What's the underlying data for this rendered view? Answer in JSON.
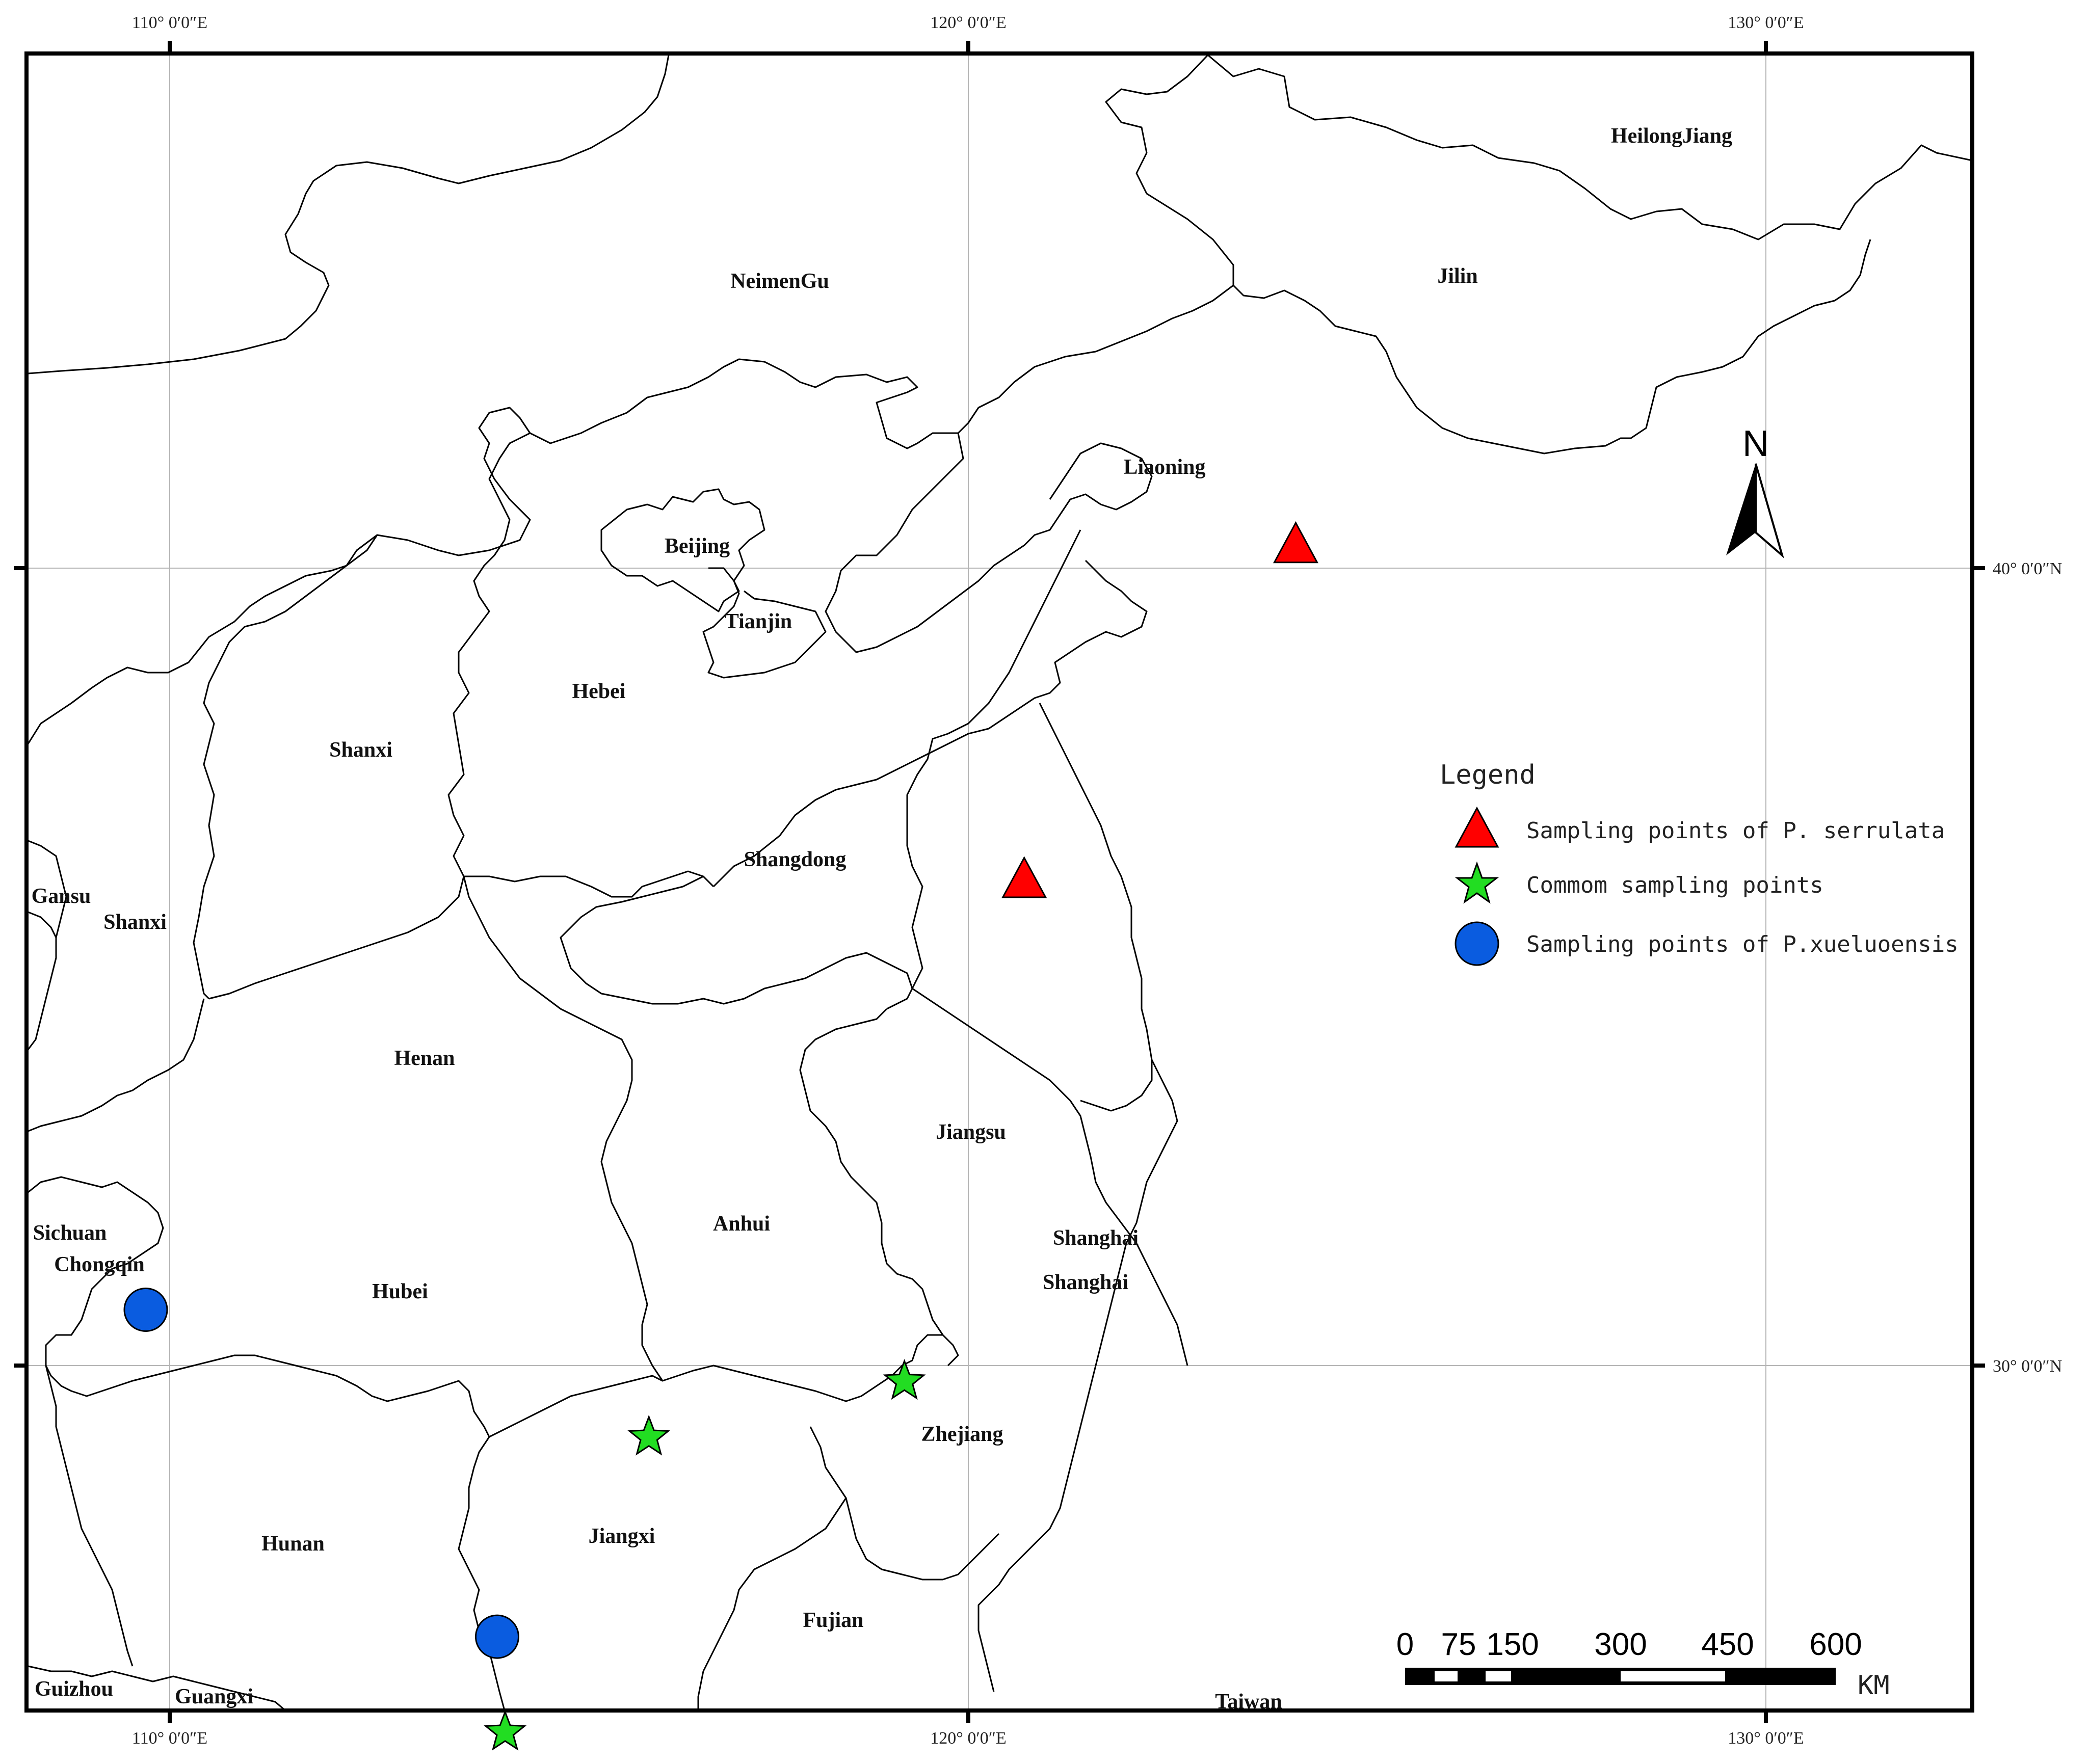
{
  "coordinates": {
    "top": [
      "110° 0′0″E",
      "120° 0′0″E",
      "130° 0′0″E"
    ],
    "bottom": [
      "110° 0′0″E",
      "120° 0′0″E",
      "130° 0′0″E"
    ],
    "right": [
      "40° 0′0″N",
      "30° 0′0″N"
    ]
  },
  "provinces": [
    "HeilongJiang",
    "Jilin",
    "NeimenGu",
    "Liaoning",
    "Beijing",
    "Tianjin",
    "Hebei",
    "Shanxi",
    "Shangdong",
    "Gansu",
    "Shanxi",
    "Henan",
    "Jiangsu",
    "Anhui",
    "Shanghai",
    "Shanghai",
    "Sichuan",
    "Chongqin",
    "Hubei",
    "Zhejiang",
    "Hunan",
    "Jiangxi",
    "Fujian",
    "Guizhou",
    "Guangxi",
    "Taiwan"
  ],
  "legend": {
    "title": "Legend",
    "items": [
      {
        "label": "Sampling points of P. serrulata",
        "symbol": "triangle",
        "color": "#ff0000"
      },
      {
        "label": "Commom sampling points",
        "symbol": "star",
        "color": "#22dd22"
      },
      {
        "label": "Sampling points of P.xueluoensis",
        "symbol": "circle",
        "color": "#0a5ce0"
      }
    ]
  },
  "sampling_points": [
    {
      "type": "triangle",
      "lon": 124.1,
      "lat": 40.3
    },
    {
      "type": "triangle",
      "lon": 120.7,
      "lat": 36.1
    },
    {
      "type": "star",
      "lon": 119.2,
      "lat": 29.8
    },
    {
      "type": "star",
      "lon": 116.0,
      "lat": 29.1
    },
    {
      "type": "star",
      "lon": 114.2,
      "lat": 25.4
    },
    {
      "type": "circle",
      "lon": 109.7,
      "lat": 30.7
    },
    {
      "type": "circle",
      "lon": 114.1,
      "lat": 26.6
    }
  ],
  "scale_bar": {
    "ticks": [
      "0",
      "75",
      "150",
      "300",
      "450",
      "600"
    ],
    "unit": "KM"
  },
  "north_arrow": {
    "label": "N"
  }
}
